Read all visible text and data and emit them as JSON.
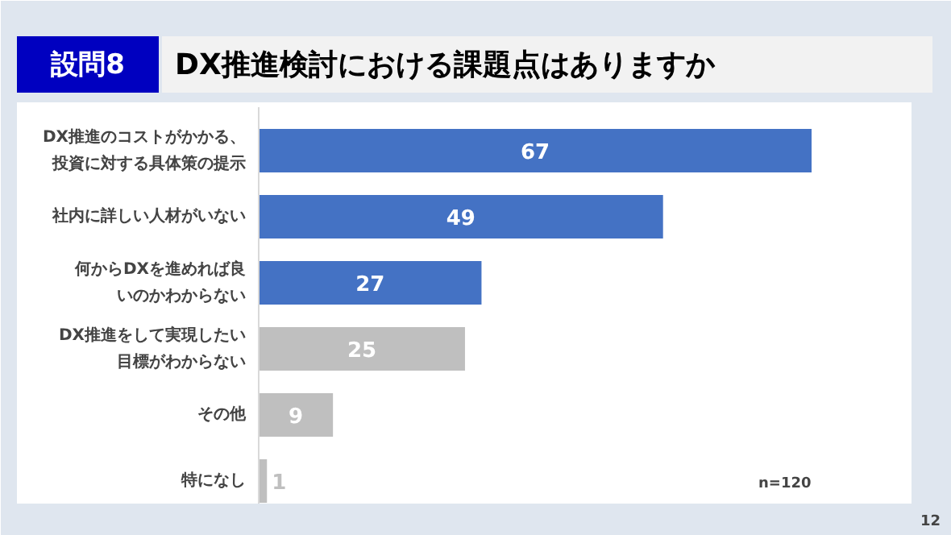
{
  "chart_data": {
    "type": "bar",
    "orientation": "horizontal",
    "title": "DX推進検討における課題点はありますか",
    "categories": [
      "DX推進のコストがかかる、投資に対する具体策の提示",
      "社内に詳しい人材がいない",
      "何からDXを進めれば良いのかわからない",
      "DX推進をして実現したい目標がわからない",
      "その他",
      "特になし"
    ],
    "values": [
      67,
      49,
      27,
      25,
      9,
      1
    ],
    "colors": [
      "#4472c4",
      "#4472c4",
      "#4472c4",
      "#bfbfbf",
      "#bfbfbf",
      "#bfbfbf"
    ],
    "data_labels": true,
    "grid": false,
    "annotations": [
      "設問8",
      "n=120",
      "12"
    ]
  }
}
